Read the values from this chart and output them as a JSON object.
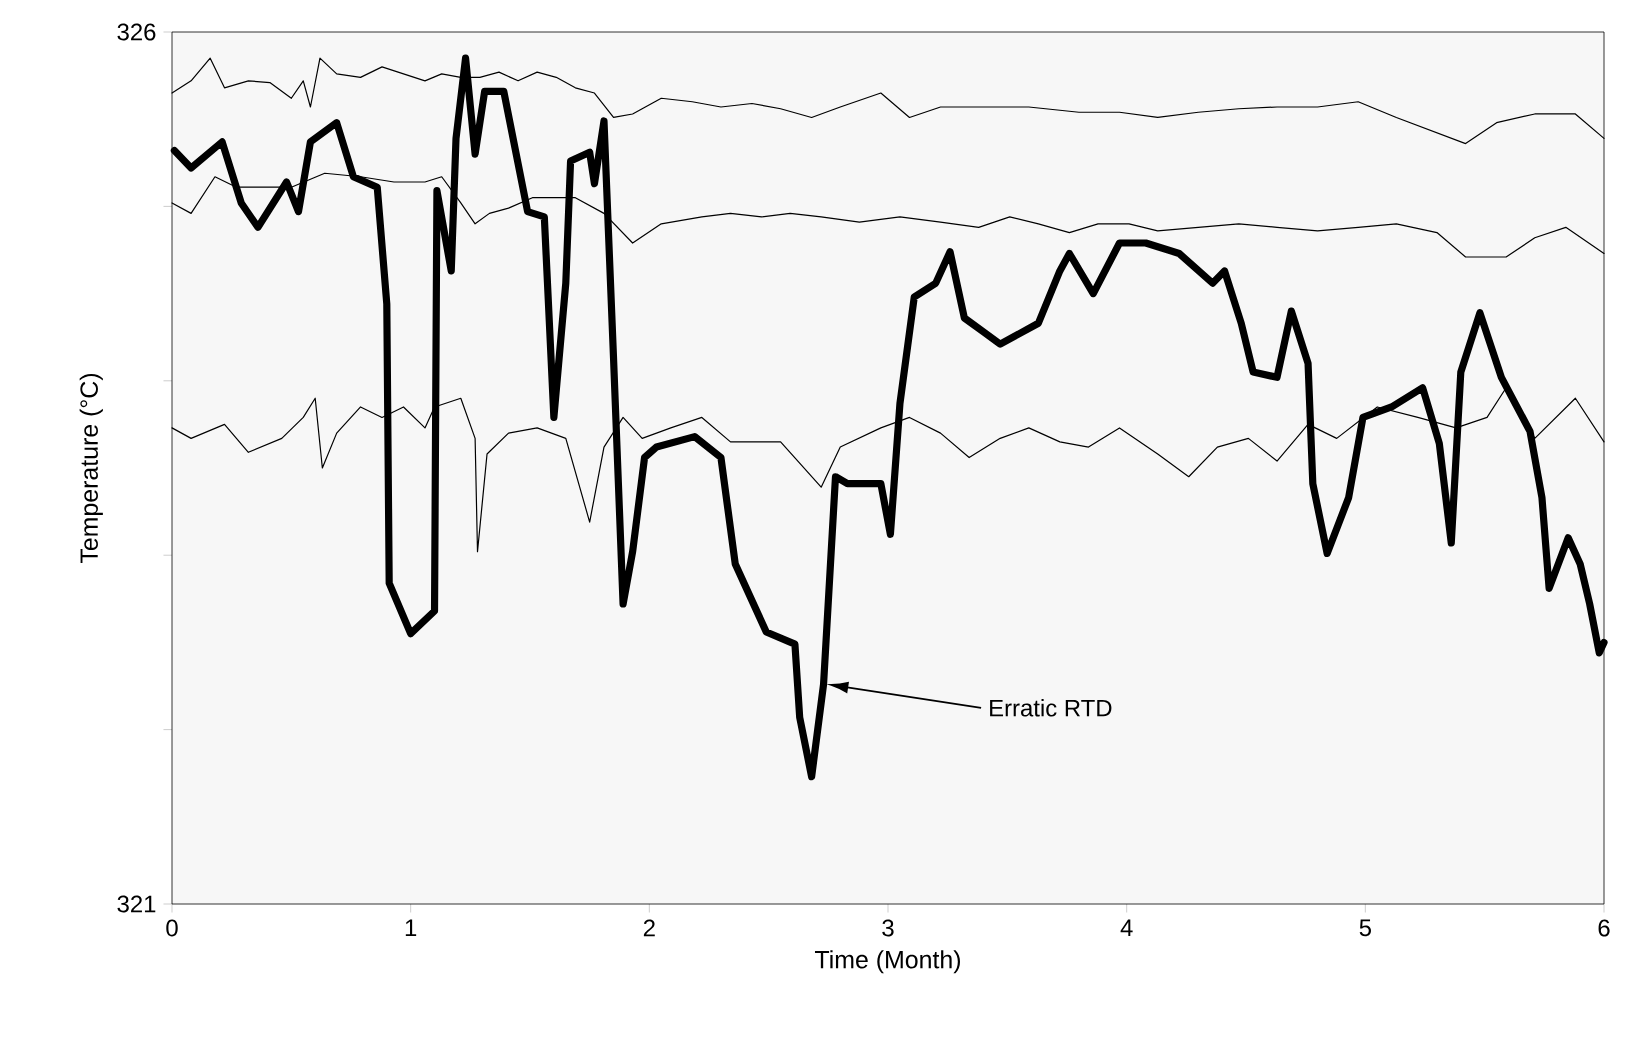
{
  "chart_data": {
    "type": "line",
    "xlabel": "Time (Month)",
    "ylabel": "Temperature (°C)",
    "xlim": [
      0,
      6
    ],
    "ylim": [
      321,
      326
    ],
    "xticks": [
      0,
      1,
      2,
      3,
      4,
      5,
      6
    ],
    "yticks": [
      321,
      {
        "value": 322,
        "label": null
      },
      {
        "value": 323,
        "label": null
      },
      {
        "value": 324,
        "label": null
      },
      {
        "value": 325,
        "label": null
      },
      326
    ],
    "grid": false,
    "marker": "none",
    "line_style": "solid",
    "annotations": [
      "Erratic RTD"
    ],
    "series": [
      {
        "color": "#000000",
        "x": [
          0.0,
          0.08,
          0.16,
          0.22,
          0.32,
          0.41,
          0.5,
          0.55,
          0.58,
          0.62,
          0.69,
          0.79,
          0.88,
          0.97,
          1.06,
          1.13,
          1.21,
          1.29,
          1.37,
          1.45,
          1.53,
          1.61,
          1.69,
          1.77,
          1.85,
          1.93,
          2.05,
          2.18,
          2.3,
          2.43,
          2.55,
          2.68,
          2.8,
          2.97,
          3.09,
          3.22,
          3.38,
          3.59,
          3.8,
          3.97,
          4.13,
          4.3,
          4.47,
          4.63,
          4.8,
          4.97,
          5.13,
          5.42,
          5.55,
          5.71,
          5.88,
          6.0
        ],
        "values": [
          325.65,
          325.72,
          325.85,
          325.68,
          325.72,
          325.71,
          325.62,
          325.72,
          325.57,
          325.85,
          325.76,
          325.74,
          325.8,
          325.76,
          325.72,
          325.76,
          325.74,
          325.74,
          325.77,
          325.72,
          325.77,
          325.74,
          325.68,
          325.65,
          325.51,
          325.53,
          325.62,
          325.6,
          325.57,
          325.59,
          325.56,
          325.51,
          325.57,
          325.65,
          325.51,
          325.57,
          325.57,
          325.57,
          325.54,
          325.54,
          325.51,
          325.54,
          325.56,
          325.57,
          325.57,
          325.6,
          325.51,
          325.36,
          325.48,
          325.53,
          325.53,
          325.39
        ]
      },
      {
        "color": "#000000",
        "x": [
          0.0,
          0.08,
          0.18,
          0.27,
          0.36,
          0.5,
          0.64,
          0.79,
          0.93,
          1.06,
          1.13,
          1.21,
          1.27,
          1.33,
          1.41,
          1.51,
          1.61,
          1.69,
          1.81,
          1.93,
          2.05,
          2.22,
          2.34,
          2.47,
          2.59,
          2.72,
          2.88,
          3.05,
          3.22,
          3.38,
          3.51,
          3.63,
          3.76,
          3.88,
          4.01,
          4.13,
          4.3,
          4.47,
          4.63,
          4.8,
          4.97,
          5.13,
          5.3,
          5.42,
          5.59,
          5.71,
          5.84,
          6.0
        ],
        "values": [
          325.02,
          324.96,
          325.17,
          325.11,
          325.11,
          325.11,
          325.19,
          325.17,
          325.14,
          325.14,
          325.17,
          325.02,
          324.9,
          324.96,
          324.99,
          325.05,
          325.05,
          325.05,
          324.96,
          324.79,
          324.9,
          324.94,
          324.96,
          324.94,
          324.96,
          324.94,
          324.91,
          324.94,
          324.91,
          324.88,
          324.94,
          324.9,
          324.85,
          324.9,
          324.9,
          324.86,
          324.88,
          324.9,
          324.88,
          324.86,
          324.88,
          324.9,
          324.85,
          324.71,
          324.71,
          324.82,
          324.88,
          324.73
        ]
      },
      {
        "color": "#000000",
        "x": [
          0.0,
          0.08,
          0.22,
          0.32,
          0.46,
          0.55,
          0.6,
          0.63,
          0.69,
          0.79,
          0.88,
          0.97,
          1.06,
          1.1,
          1.21,
          1.27,
          1.28,
          1.32,
          1.41,
          1.53,
          1.65,
          1.75,
          1.81,
          1.89,
          1.97,
          2.09,
          2.22,
          2.34,
          2.55,
          2.72,
          2.8,
          2.97,
          3.09,
          3.22,
          3.34,
          3.47,
          3.59,
          3.72,
          3.84,
          3.97,
          4.13,
          4.26,
          4.38,
          4.51,
          4.63,
          4.76,
          4.88,
          5.05,
          5.22,
          5.38,
          5.51,
          5.59,
          5.71,
          5.88,
          6.0
        ],
        "values": [
          323.73,
          323.67,
          323.75,
          323.59,
          323.67,
          323.79,
          323.9,
          323.5,
          323.7,
          323.85,
          323.79,
          323.85,
          323.73,
          323.85,
          323.9,
          323.67,
          323.02,
          323.58,
          323.7,
          323.73,
          323.67,
          323.19,
          323.62,
          323.79,
          323.67,
          323.73,
          323.79,
          323.65,
          323.65,
          323.39,
          323.62,
          323.73,
          323.79,
          323.7,
          323.56,
          323.67,
          323.73,
          323.65,
          323.62,
          323.73,
          323.58,
          323.45,
          323.62,
          323.67,
          323.54,
          323.75,
          323.67,
          323.85,
          323.79,
          323.73,
          323.79,
          323.96,
          323.67,
          323.9,
          323.65
        ]
      },
      {
        "color": "#000000",
        "x": [
          0.01,
          0.08,
          0.21,
          0.29,
          0.36,
          0.48,
          0.53,
          0.58,
          0.69,
          0.76,
          0.86,
          0.9,
          0.91,
          1.0,
          1.1,
          1.11,
          1.17,
          1.19,
          1.23,
          1.27,
          1.31,
          1.39,
          1.49,
          1.56,
          1.6,
          1.65,
          1.67,
          1.75,
          1.77,
          1.81,
          1.85,
          1.89,
          1.93,
          1.98,
          2.03,
          2.19,
          2.3,
          2.36,
          2.49,
          2.61,
          2.63,
          2.68,
          2.73,
          2.78,
          2.83,
          2.97,
          3.01,
          3.05,
          3.11,
          3.2,
          3.26,
          3.32,
          3.4,
          3.47,
          3.63,
          3.72,
          3.76,
          3.86,
          3.97,
          4.08,
          4.22,
          4.36,
          4.41,
          4.48,
          4.53,
          4.63,
          4.69,
          4.76,
          4.78,
          4.84,
          4.93,
          4.99,
          5.11,
          5.24,
          5.31,
          5.36,
          5.4,
          5.48,
          5.57,
          5.69,
          5.74,
          5.77,
          5.85,
          5.9,
          5.94,
          5.98,
          6.0
        ],
        "values": [
          325.32,
          325.22,
          325.37,
          325.02,
          324.88,
          325.14,
          324.97,
          325.37,
          325.48,
          325.17,
          325.11,
          324.44,
          322.84,
          322.55,
          322.68,
          325.09,
          324.63,
          325.39,
          325.85,
          325.3,
          325.66,
          325.66,
          324.97,
          324.94,
          323.79,
          324.56,
          325.26,
          325.31,
          325.13,
          325.49,
          324.13,
          322.72,
          323.02,
          323.56,
          323.62,
          323.68,
          323.56,
          322.95,
          322.56,
          322.49,
          322.07,
          321.73,
          322.26,
          323.45,
          323.41,
          323.41,
          323.12,
          323.87,
          324.48,
          324.56,
          324.74,
          324.36,
          324.28,
          324.21,
          324.33,
          324.63,
          324.73,
          324.5,
          324.79,
          324.79,
          324.73,
          324.56,
          324.63,
          324.33,
          324.05,
          324.02,
          324.4,
          324.1,
          323.41,
          323.01,
          323.33,
          323.79,
          323.85,
          323.96,
          323.64,
          323.07,
          324.05,
          324.39,
          324.02,
          323.71,
          323.33,
          322.81,
          323.1,
          322.95,
          322.72,
          322.44,
          322.5
        ]
      }
    ]
  }
}
